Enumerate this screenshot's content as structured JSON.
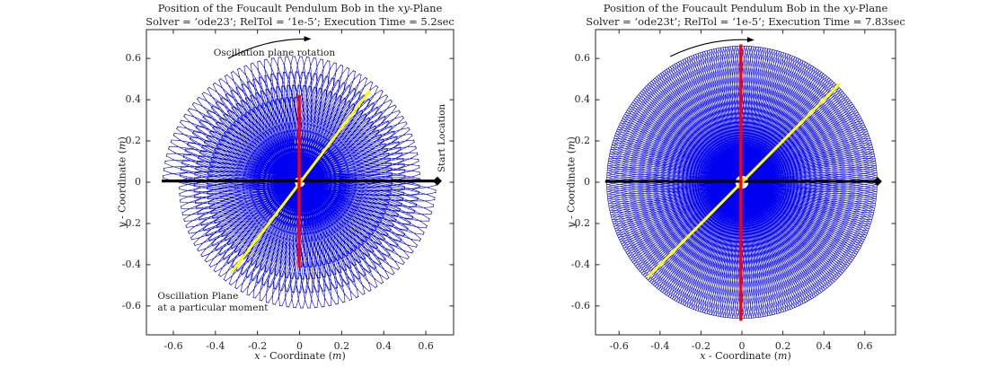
{
  "figure": {
    "background": "#ffffff",
    "axis_color": "#262626",
    "text_color": "#1f1f1f"
  },
  "chart_data": [
    {
      "type": "line",
      "title": {
        "pre": "Position of the Foucault Pendulum Bob in the ",
        "italic": "xy",
        "post": "-Plane"
      },
      "subtitle": "Solver = ‘ode23’; RelTol = ‘1e-5’; Execution Time = 5.2sec",
      "xlabel": {
        "var": "x",
        "mid": " - Coordinate (",
        "unit": "m",
        "end": ")"
      },
      "ylabel": {
        "var": "y",
        "mid": " - Coordinate (",
        "unit": "m",
        "end": ")"
      },
      "xlim": [
        -0.728,
        0.732
      ],
      "ylim": [
        -0.74,
        0.74
      ],
      "xticks": [
        -0.6,
        -0.4,
        -0.2,
        0,
        0.2,
        0.4,
        0.6
      ],
      "yticks": [
        -0.6,
        -0.4,
        -0.2,
        0,
        0.2,
        0.4,
        0.6
      ],
      "grid": false,
      "legend": null,
      "trajectory": {
        "name": "pendulum-bob-path",
        "color": "#0000f0",
        "amplitude_start": 0.655,
        "amplitude_end": 0.415,
        "swings": 200,
        "samples_per_swing": 26,
        "precession_deg": 630,
        "direction": "clockwise",
        "ellipticity": 0.06,
        "draw_dots": true
      },
      "overlays": [
        {
          "name": "start-oscillation-line",
          "color": "#000000",
          "x1": -0.655,
          "y1": 0.006,
          "x2": 0.655,
          "y2": 0.006,
          "width": 3.2,
          "end_marker": "diamond",
          "marker_size": 10
        },
        {
          "name": "oscillation-plane-line",
          "color": "#ffff00",
          "x1": -0.325,
          "y1": -0.44,
          "x2": 0.335,
          "y2": 0.445,
          "width": 3
        },
        {
          "name": "final-plane-line",
          "color": "#ff0000",
          "x1": -0.002,
          "y1": -0.415,
          "x2": -0.002,
          "y2": 0.423,
          "width": 3.4
        }
      ],
      "annotations": [
        {
          "type": "arrow",
          "x1": -0.34,
          "y1": 0.6,
          "x2": 0.045,
          "y2": 0.695,
          "curve": 12
        },
        {
          "type": "text",
          "text": "Oscillation plane rotation",
          "x": -0.12,
          "y": 0.625,
          "anchor": "center"
        },
        {
          "type": "text",
          "text": "Start Location",
          "x": 0.675,
          "y": 0.215,
          "anchor": "center",
          "rotate": -90
        },
        {
          "type": "text",
          "text": "Oscillation Plane\nat a particular moment",
          "x": -0.675,
          "y": -0.525,
          "anchor": "left-top"
        }
      ]
    },
    {
      "type": "line",
      "title": {
        "pre": "Position of the Foucault Pendulum Bob in the ",
        "italic": "xy",
        "post": "-Plane"
      },
      "subtitle": "Solver = ‘ode23t’; RelTol = ‘1e-5’; Execution Time = 7.83sec",
      "xlabel": {
        "var": "x",
        "mid": " - Coordinate (",
        "unit": "m",
        "end": ")"
      },
      "ylabel": {
        "var": "y",
        "mid": " - Coordinate (",
        "unit": "m",
        "end": ")"
      },
      "xlim": [
        -0.715,
        0.75
      ],
      "ylim": [
        -0.74,
        0.74
      ],
      "xticks": [
        -0.6,
        -0.4,
        -0.2,
        0,
        0.2,
        0.4,
        0.6
      ],
      "yticks": [
        -0.6,
        -0.4,
        -0.2,
        0,
        0.2,
        0.4,
        0.6
      ],
      "grid": false,
      "legend": null,
      "trajectory": {
        "name": "pendulum-bob-path",
        "color": "#0000f0",
        "amplitude_start": 0.665,
        "amplitude_end": 0.665,
        "swings": 225,
        "samples_per_swing": 26,
        "precession_deg": 450,
        "direction": "clockwise",
        "ellipticity": 0.05,
        "draw_dots": false
      },
      "overlays": [
        {
          "name": "start-oscillation-line",
          "color": "#000000",
          "x1": -0.668,
          "y1": 0.004,
          "x2": 0.662,
          "y2": 0.004,
          "width": 3.2,
          "end_marker": "diamond",
          "marker_size": 10
        },
        {
          "name": "oscillation-plane-line",
          "color": "#ffff00",
          "x1": -0.462,
          "y1": -0.462,
          "x2": 0.478,
          "y2": 0.478,
          "width": 3
        },
        {
          "name": "final-plane-line",
          "color": "#ff0000",
          "x1": -0.005,
          "y1": -0.672,
          "x2": -0.005,
          "y2": 0.668,
          "width": 3.4
        }
      ],
      "annotations": [
        {
          "type": "arrow",
          "x1": -0.35,
          "y1": 0.61,
          "x2": 0.05,
          "y2": 0.69,
          "curve": 12
        }
      ]
    }
  ]
}
